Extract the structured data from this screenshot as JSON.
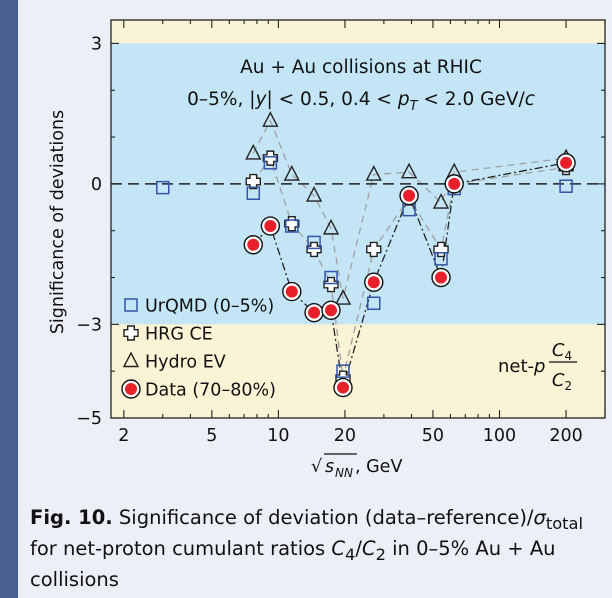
{
  "chart_data": {
    "type": "scatter",
    "title": "Au + Au collisions at RHIC",
    "subtitle_parts": [
      "0–5%, ",
      "|",
      "y",
      "|",
      " < 0.5, 0.4 < ",
      "p",
      "T",
      " < 2.0 GeV/",
      "c"
    ],
    "xlabel_parts": [
      "√",
      "s",
      "NN",
      ", GeV"
    ],
    "ylabel": "Significance of deviations",
    "x_scale": "log",
    "xlim": [
      1.75,
      300
    ],
    "ylim": [
      -5,
      3.5
    ],
    "x_ticks": [
      2,
      5,
      10,
      20,
      50,
      100,
      200
    ],
    "y_ticks": [
      3,
      0,
      -3,
      -5
    ],
    "x_tick_labels": [
      "2",
      "5",
      "10",
      "20",
      "50",
      "100",
      "200"
    ],
    "y_tick_labels": [
      "3",
      "0",
      "−3",
      "−5"
    ],
    "bands": [
      {
        "y0": 3,
        "y1": 3.5,
        "color": "#fbf3d6"
      },
      {
        "y0": -3,
        "y1": 3,
        "color": "#c4e5f5"
      },
      {
        "y0": -5,
        "y1": -3,
        "color": "#fbf3d6"
      }
    ],
    "reference_line_y": 0,
    "series": [
      {
        "name": "UrQMD (0–5%)",
        "marker": "square",
        "color": "#3355aa",
        "line_style": "none",
        "x": [
          3.0,
          7.7,
          9.2,
          11.5,
          14.5,
          17.3,
          19.6,
          27,
          39,
          54.4,
          62.4,
          200
        ],
        "y": [
          -0.08,
          -0.2,
          0.45,
          -0.9,
          -1.25,
          -2.0,
          -4.0,
          -2.55,
          -0.55,
          -1.6,
          -0.1,
          -0.05
        ]
      },
      {
        "name": "HRG CE",
        "marker": "cross",
        "color": "#222222",
        "line_style": "dashed",
        "line_color": "#a0a0a0",
        "x": [
          7.7,
          9.2,
          11.5,
          14.5,
          17.3,
          19.6,
          27,
          39,
          54.4,
          62.4,
          200
        ],
        "y": [
          0.05,
          0.55,
          -0.85,
          -1.4,
          -2.15,
          -4.15,
          -1.4,
          -0.3,
          -1.4,
          0.0,
          0.35
        ]
      },
      {
        "name": "Hydro EV",
        "marker": "triangle",
        "color": "#222222",
        "line_style": "dashed",
        "line_color": "#a0a0a0",
        "x": [
          7.7,
          9.2,
          11.5,
          14.5,
          17.3,
          19.6,
          27,
          39,
          54.4,
          62.4,
          200
        ],
        "y": [
          0.65,
          1.35,
          0.2,
          -0.25,
          -0.95,
          -2.45,
          0.2,
          0.25,
          -0.4,
          0.25,
          0.55
        ]
      },
      {
        "name": "Data (70–80%)",
        "marker": "circle",
        "color": "#e8202a",
        "line_style": "dashdot",
        "line_color": "#222222",
        "x": [
          7.7,
          9.2,
          11.5,
          14.5,
          17.3,
          19.6,
          27,
          39,
          54.4,
          62.4,
          200
        ],
        "y": [
          -1.3,
          -0.9,
          -2.3,
          -2.75,
          -2.7,
          -4.35,
          -2.1,
          -0.25,
          -2.0,
          0.0,
          0.45
        ]
      }
    ],
    "legend_placement": "bottom-left",
    "annotation_parts": [
      "net-",
      "p",
      "C",
      "4",
      "C",
      "2"
    ]
  },
  "caption": {
    "label": "Fig. 10.",
    "text_parts": [
      " Significance of deviation (data–reference)/",
      "σ",
      "total",
      " for net-proton cumulant ratios ",
      "C",
      "4",
      "/",
      "C",
      "2",
      " in 0–5% Au + Au collisions"
    ]
  }
}
